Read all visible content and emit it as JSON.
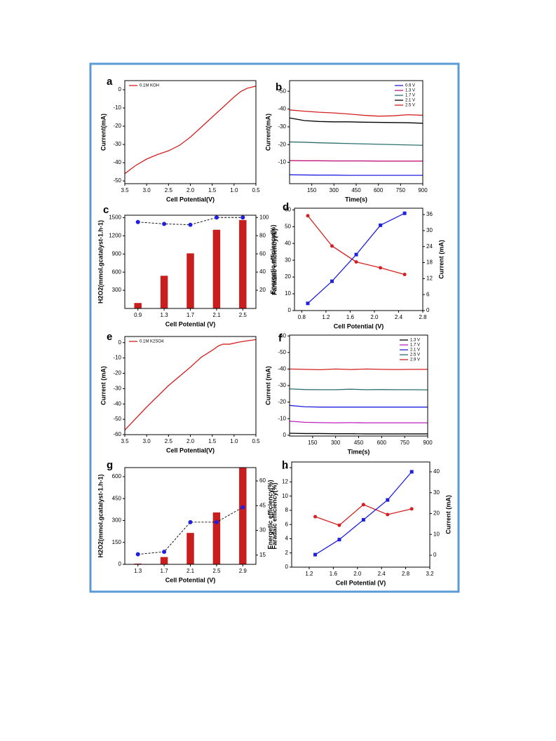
{
  "chart_data": [
    {
      "type": "line",
      "panel_label": "a",
      "x_label": "Cell Potential(V)",
      "y_label": "Current(mA)",
      "x": [
        3.5,
        3.25,
        3.0,
        2.75,
        2.5,
        2.25,
        2.0,
        1.75,
        1.5,
        1.25,
        1.0,
        0.85,
        0.7,
        0.5
      ],
      "series": [
        {
          "name": "0.1M KOH",
          "color": "#d42020",
          "values": [
            -46,
            -41.5,
            -38,
            -35.5,
            -33.5,
            -30.5,
            -26,
            -20.5,
            -15,
            -9.5,
            -4,
            -1,
            0.8,
            2
          ]
        }
      ],
      "xlim": [
        3.5,
        0.5
      ],
      "ylim": [
        -51.5,
        5
      ],
      "xticks": [
        3.5,
        {
          "value": 3,
          "label": "3.0"
        },
        2.5,
        {
          "value": 2,
          "label": "2.0"
        },
        1.5,
        {
          "value": 1,
          "label": "1.0"
        },
        0.5
      ],
      "yticks": [
        0,
        -10,
        -20,
        -30,
        -40,
        -50
      ],
      "legend": "upper left"
    },
    {
      "type": "line",
      "panel_label": "b",
      "x_label": "Time(s)",
      "y_label": "Current(mA)",
      "x": [
        0,
        100,
        200,
        300,
        400,
        500,
        600,
        700,
        800,
        900
      ],
      "series": [
        {
          "name": "0.9 V",
          "color": "#2020e0",
          "values": [
            -3,
            -2.9,
            -2.8,
            -2.8,
            -2.7,
            -2.7,
            -2.7,
            -2.7,
            -2.7,
            -2.7
          ]
        },
        {
          "name": "1.3 V",
          "color": "#c0187a",
          "values": [
            -11,
            -10.9,
            -10.9,
            -10.8,
            -10.8,
            -10.8,
            -10.7,
            -10.7,
            -10.7,
            -10.7
          ]
        },
        {
          "name": "1.7 V",
          "color": "#2f6f6f",
          "values": [
            -21.5,
            -21.3,
            -21,
            -20.8,
            -20.6,
            -20.4,
            -20.2,
            -20,
            -19.8,
            -19.6
          ]
        },
        {
          "name": "2.1 V",
          "color": "#000000",
          "values": [
            -35,
            -33.5,
            -33,
            -32.8,
            -32.8,
            -32.6,
            -32.5,
            -32.4,
            -32.3,
            -32
          ]
        },
        {
          "name": "2.5 V",
          "color": "#d42020",
          "values": [
            -39.5,
            -38.8,
            -38.2,
            -37.8,
            -37.2,
            -36.5,
            -36,
            -36.2,
            -36.8,
            -36.5
          ]
        }
      ],
      "xlim": [
        0,
        900
      ],
      "ylim": [
        2,
        -56
      ],
      "xticks": [
        150,
        300,
        450,
        600,
        750,
        900
      ],
      "yticks": [
        -10,
        -20,
        -30,
        -40,
        -50
      ],
      "legend": "upper right"
    },
    {
      "type": "bar",
      "panel_label": "c",
      "x_label": "Cell Potential (V)",
      "y_label": "H2O2(mmol.gcatalyst-1.h-1)",
      "y2_label": "Faradaic efficiency(%)",
      "categories": [
        "0.9",
        "1.3",
        "1.7",
        "2.1",
        "2.5"
      ],
      "series": [
        {
          "color": "#c81e1e",
          "values": [
            90,
            540,
            910,
            1300,
            1460
          ]
        },
        {
          "color": "#2020e0",
          "axis": "y2",
          "line_style": "dashed",
          "line_color": "#000000",
          "marker": "circle",
          "values": [
            95,
            93,
            92,
            100,
            100
          ]
        }
      ],
      "ylim": [
        0,
        1540
      ],
      "yticks": [
        300,
        600,
        900,
        1200,
        1500
      ],
      "y2lim": [
        0,
        102.5
      ],
      "y2ticks": [
        20,
        40,
        60,
        80,
        100
      ]
    },
    {
      "type": "line",
      "panel_label": "d",
      "x_label": "Cell Potential (V)",
      "y_label": "Energetic efficiency(%)",
      "y2_label": "Current (mA)",
      "x": [
        0.9,
        1.3,
        1.7,
        2.1,
        2.5
      ],
      "series": [
        {
          "color": "#d42020",
          "marker": "circle",
          "values": [
            56.5,
            38.5,
            29,
            25.5,
            21.5
          ]
        },
        {
          "color": "#2020e0",
          "axis": "y2",
          "marker": "square",
          "values": [
            2.7,
            11,
            21,
            32,
            36.5
          ]
        }
      ],
      "xlim": [
        0.68,
        2.8
      ],
      "ylim": [
        0,
        61
      ],
      "y2lim": [
        0,
        38.4
      ],
      "xticks": [
        0.8,
        1.2,
        1.6,
        {
          "value": 2,
          "label": "2.0"
        },
        2.4,
        2.8
      ],
      "yticks": [
        0,
        10,
        20,
        30,
        40,
        50,
        60
      ],
      "y2ticks": [
        0,
        6,
        12,
        18,
        24,
        30,
        36
      ]
    },
    {
      "type": "line",
      "panel_label": "e",
      "x_label": "Cell Potential(V)",
      "y_label": "Current (mA)",
      "x": [
        3.5,
        3.0,
        2.5,
        2.0,
        1.75,
        1.5,
        1.35,
        1.25,
        1.1,
        0.9,
        0.7,
        0.5
      ],
      "series": [
        {
          "name": "0.1M K2SO4",
          "color": "#d42020",
          "values": [
            -57,
            -42,
            -28,
            -16,
            -9.5,
            -5,
            -2,
            -1,
            -1,
            0.3,
            1.2,
            2
          ]
        }
      ],
      "xlim": [
        3.5,
        0.5
      ],
      "ylim": [
        -60,
        4
      ],
      "xticks": [
        3.5,
        {
          "value": 3,
          "label": "3.0"
        },
        2.5,
        {
          "value": 2,
          "label": "2.0"
        },
        1.5,
        {
          "value": 1,
          "label": "1.0"
        },
        0.5
      ],
      "yticks": [
        0,
        -10,
        -20,
        -30,
        -40,
        -50,
        -60
      ],
      "legend": "upper left"
    },
    {
      "type": "line",
      "panel_label": "f",
      "x_label": "Time(s)",
      "y_label": "Current (mA)",
      "x": [
        0,
        100,
        200,
        300,
        400,
        500,
        600,
        700,
        800,
        900
      ],
      "series": [
        {
          "name": "1.3 V",
          "color": "#000000",
          "values": [
            -1.2,
            -1,
            -1,
            -0.9,
            -0.9,
            -0.8,
            -0.8,
            -0.8,
            -0.8,
            -0.8
          ]
        },
        {
          "name": "1.7 V",
          "color": "#c020c0",
          "values": [
            -8.5,
            -7.8,
            -7.6,
            -7.5,
            -7.6,
            -7.5,
            -7.5,
            -7.5,
            -7.5,
            -7.5
          ]
        },
        {
          "name": "2.1 V",
          "color": "#2020e0",
          "values": [
            -18,
            -17.2,
            -17,
            -17,
            -17,
            -17,
            -17,
            -17,
            -17,
            -17
          ]
        },
        {
          "name": "2.5 V",
          "color": "#2f6f6f",
          "values": [
            -28,
            -27.6,
            -27.5,
            -27.5,
            -27.8,
            -27.5,
            -27.6,
            -27.5,
            -27.5,
            -27.4
          ]
        },
        {
          "name": "2.9 V",
          "color": "#d42020",
          "values": [
            -40,
            -39.8,
            -39.6,
            -40,
            -39.7,
            -40,
            -39.8,
            -39.7,
            -39.8,
            -39.8
          ]
        }
      ],
      "xlim": [
        0,
        900
      ],
      "ylim": [
        0.5,
        -60.5
      ],
      "xticks": [
        150,
        300,
        450,
        600,
        750,
        900
      ],
      "yticks": [
        0,
        -10,
        -20,
        -30,
        -40,
        -50,
        -60
      ],
      "legend": "upper right"
    },
    {
      "type": "bar",
      "panel_label": "g",
      "x_label": "Cell Potential (V)",
      "y_label": "H2O2(mmol.gcatalyst-1.h-1)",
      "y2_label": "Faradaic efficiency(%)",
      "categories": [
        "1.3",
        "1.7",
        "2.1",
        "2.5",
        "2.9"
      ],
      "series": [
        {
          "color": "#c81e1e",
          "values": [
            5,
            50,
            215,
            355,
            660
          ]
        },
        {
          "color": "#2020e0",
          "axis": "y2",
          "line_style": "dashed",
          "line_color": "#000000",
          "marker": "circle",
          "values": [
            15.5,
            17,
            35,
            35,
            44
          ]
        }
      ],
      "ylim": [
        0,
        662
      ],
      "yticks": [
        0,
        150,
        300,
        450,
        600
      ],
      "y2lim": [
        9.4,
        68.1
      ],
      "y2ticks": [
        15,
        30,
        45,
        60
      ]
    },
    {
      "type": "line",
      "panel_label": "h",
      "x_label": "Cell Potential (V)",
      "y_label": "Energetic efficiency(%)",
      "y2_label": "Current (mA)",
      "x": [
        1.3,
        1.7,
        2.1,
        2.5,
        2.9
      ],
      "series": [
        {
          "color": "#d42020",
          "marker": "circle",
          "values": [
            7.1,
            5.9,
            8.8,
            7.4,
            8.2
          ]
        },
        {
          "color": "#2020e0",
          "axis": "y2",
          "marker": "square",
          "values": [
            0.3,
            7.5,
            17,
            26.5,
            40
          ]
        }
      ],
      "xlim": [
        0.91,
        3.2
      ],
      "ylim": [
        0,
        14.8
      ],
      "y2lim": [
        -5.7,
        44.7
      ],
      "xticks": [
        1.2,
        1.6,
        {
          "value": 2,
          "label": "2.0"
        },
        2.4,
        2.8,
        3.2
      ],
      "yticks": [
        0,
        2,
        4,
        6,
        8,
        10,
        12,
        14
      ],
      "y2ticks": [
        0,
        10,
        20,
        30,
        40
      ]
    }
  ]
}
